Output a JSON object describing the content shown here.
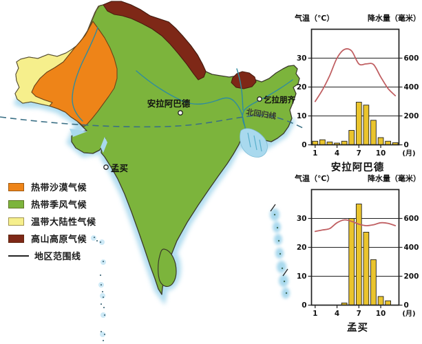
{
  "map": {
    "cities": [
      {
        "name": "安拉阿巴德"
      },
      {
        "name": "乞拉朋齐"
      },
      {
        "name": "孟买"
      }
    ],
    "tropic_of_cancer_label": "北回归线",
    "legend": [
      {
        "label": "热带沙漠气候",
        "swatch": "#EE8418"
      },
      {
        "label": "热带季风气候",
        "swatch": "#7CB43C"
      },
      {
        "label": "温带大陆性气候",
        "swatch": "#F6EF8C"
      },
      {
        "label": "高山高原气候",
        "swatch": "#7E2817"
      },
      {
        "label": "地区范围线",
        "swatch": "line"
      }
    ],
    "colors": {
      "monsoon_green": "#7CB43C",
      "desert_orange": "#EE8418",
      "continental_yellow": "#F6EF8C",
      "alpine_brown": "#7E2817",
      "water": "#A9D9EE",
      "water_light": "#CDE9F6",
      "river": "#2E8BA0",
      "tropic_line": "#3A6F85",
      "outline": "#3a3a2a"
    }
  },
  "chart_data": [
    {
      "type": "bar+line",
      "title": "安拉阿巴德",
      "left_axis_label": "气温（℃）",
      "right_axis_label": "降水量（毫米）",
      "x_axis_unit": "(月)",
      "x_tick_months": [
        1,
        4,
        7,
        10
      ],
      "temp_ticks": [
        0,
        10,
        20,
        30
      ],
      "precip_ticks": [
        0,
        200,
        400,
        600
      ],
      "temp_axis_max": 40,
      "precip_axis_max": 800,
      "months": [
        1,
        2,
        3,
        4,
        5,
        6,
        7,
        8,
        9,
        10,
        11,
        12
      ],
      "temperature_c": [
        15,
        19,
        24,
        30,
        33,
        32.5,
        28,
        28,
        27.8,
        23.5,
        19.5,
        17
      ],
      "precipitation_mm": [
        25,
        35,
        20,
        12,
        25,
        100,
        295,
        275,
        170,
        50,
        25,
        15
      ],
      "bar_color": "#EAC42D",
      "line_color": "#C05F62"
    },
    {
      "type": "bar+line",
      "title": "孟买",
      "left_axis_label": "气温（℃）",
      "right_axis_label": "降水量（毫米）",
      "x_axis_unit": "(月)",
      "x_tick_months": [
        1,
        4,
        7,
        10
      ],
      "temp_ticks": [
        0,
        10,
        20,
        30
      ],
      "precip_ticks": [
        0,
        200,
        400,
        600
      ],
      "temp_axis_max": 40,
      "precip_axis_max": 800,
      "months": [
        1,
        2,
        3,
        4,
        5,
        6,
        7,
        8,
        9,
        10,
        11,
        12
      ],
      "temperature_c": [
        25.5,
        26,
        26.5,
        28.5,
        29.5,
        29,
        28,
        27.5,
        27.8,
        28.5,
        28.3,
        27.5
      ],
      "precipitation_mm": [
        0,
        0,
        0,
        0,
        15,
        600,
        700,
        505,
        315,
        60,
        30,
        0
      ],
      "bar_color": "#EAC42D",
      "line_color": "#C05F62"
    }
  ]
}
